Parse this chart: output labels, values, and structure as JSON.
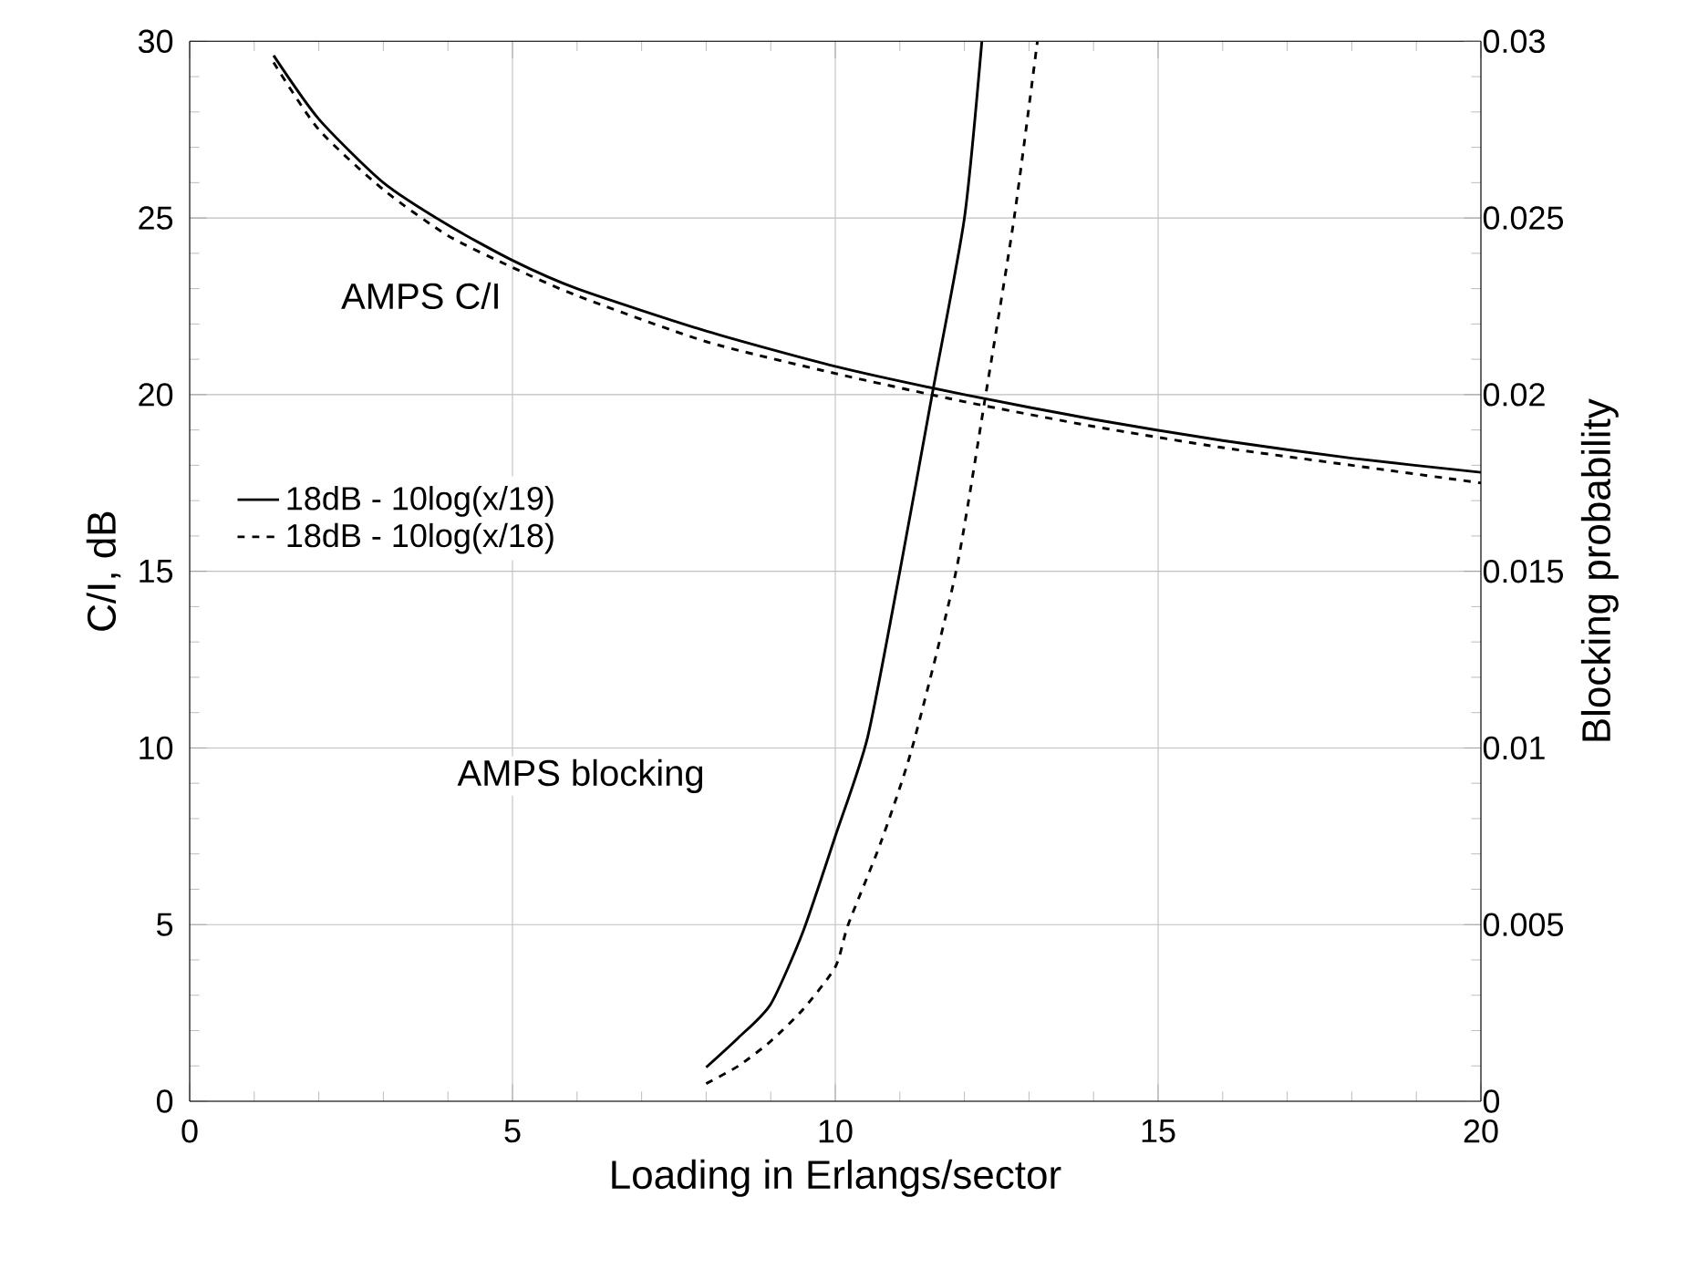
{
  "chart_data": {
    "type": "line",
    "xlabel": "Loading in Erlangs/sector",
    "ylabel": "C/I, dB",
    "y2label": "Blocking probability",
    "x": [
      1.3,
      2,
      3,
      4,
      5,
      6,
      8,
      10,
      12,
      14,
      16,
      18,
      20
    ],
    "series": [
      {
        "name": "18dB - 10log(x/19)",
        "color": "#000000",
        "line_style": "solid",
        "values": [
          29.6,
          27.8,
          26.0,
          24.8,
          23.8,
          23.0,
          21.8,
          20.8,
          20.0,
          19.3,
          18.7,
          18.2,
          17.8
        ]
      },
      {
        "name": "18dB - 10log(x/18)",
        "color": "#000000",
        "line_style": "dashed",
        "values": [
          29.4,
          27.5,
          25.8,
          24.5,
          23.6,
          22.8,
          21.5,
          20.6,
          19.8,
          19.1,
          18.5,
          18.0,
          17.5
        ]
      },
      {
        "color": "#000000",
        "line_style": "solid",
        "axis": "y2",
        "x": [
          8,
          8.5,
          9,
          9.5,
          10,
          10.5,
          11,
          11.5,
          12,
          12.27
        ],
        "values": [
          0.00096,
          0.0018,
          0.00275,
          0.0048,
          0.0075,
          0.0103,
          0.015,
          0.02,
          0.025,
          0.03
        ]
      },
      {
        "color": "#000000",
        "line_style": "dashed",
        "axis": "y2",
        "x": [
          8,
          8.5,
          9,
          9.5,
          10,
          10.2,
          10.7,
          11.19,
          11.87,
          12.33,
          12.77,
          13.13
        ],
        "values": [
          0.0005,
          0.001,
          0.0017,
          0.0026,
          0.0038,
          0.005,
          0.0073,
          0.01,
          0.015,
          0.02,
          0.025,
          0.03
        ]
      }
    ],
    "annotations": [
      "AMPS C/I",
      "AMPS blocking"
    ],
    "xlim": [
      0,
      20
    ],
    "xticks": [
      0,
      5,
      10,
      15,
      20
    ],
    "ylim": [
      0,
      30
    ],
    "yticks": [
      0,
      5,
      10,
      15,
      20,
      25,
      30
    ],
    "y2lim": [
      0,
      0.03
    ],
    "y2ticks": [
      0,
      0.005,
      0.01,
      0.015,
      0.02,
      0.025,
      0.03
    ],
    "grid": true,
    "legend": "left"
  }
}
